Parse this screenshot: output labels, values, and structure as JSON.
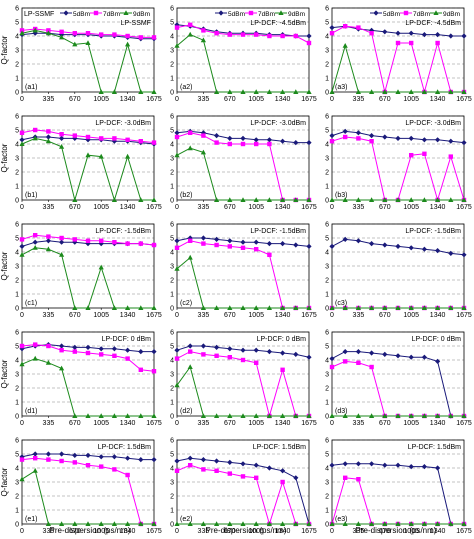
{
  "figure": {
    "ylabel": "Q-factor",
    "xlabel": "Pre-dispersion (ps/nm)"
  },
  "colors": {
    "p5": "#1a1a7a",
    "p7": "#ff00ff",
    "p9": "#1c8a1c",
    "grid": "#888888"
  },
  "legend": {
    "items": [
      {
        "label": "5dBm",
        "key": "p5"
      },
      {
        "label": "7dBm",
        "key": "p7"
      },
      {
        "label": "9dBm",
        "key": "p9"
      }
    ]
  },
  "chart_data": [
    {
      "type": "line",
      "id": "a1",
      "panel_label": "(a1)",
      "title": "LP-SSMF",
      "legend": true,
      "ylim": [
        0,
        6
      ],
      "x": [
        0,
        167.5,
        335,
        502.5,
        670,
        837.5,
        1005,
        1172.5,
        1340,
        1507.5,
        1675
      ],
      "series": [
        {
          "name": "5dBm",
          "key": "p5",
          "values": [
            4.1,
            4.2,
            4.2,
            4.1,
            4.1,
            4.1,
            4.0,
            4.0,
            3.9,
            3.8,
            3.8
          ]
        },
        {
          "name": "7dBm",
          "key": "p7",
          "values": [
            4.4,
            4.5,
            4.4,
            4.3,
            4.2,
            4.2,
            4.1,
            4.1,
            4.0,
            3.9,
            3.9
          ]
        },
        {
          "name": "9dBm",
          "key": "p9",
          "values": [
            4.2,
            4.4,
            4.2,
            3.9,
            3.4,
            3.5,
            0,
            0,
            3.4,
            0,
            0
          ]
        }
      ]
    },
    {
      "type": "line",
      "id": "a2",
      "panel_label": "(a2)",
      "title": "LP-DCF: -4.5dBm",
      "legend": true,
      "ylim": [
        0,
        6
      ],
      "x": [
        0,
        167.5,
        335,
        502.5,
        670,
        837.5,
        1005,
        1172.5,
        1340,
        1507.5,
        1675
      ],
      "series": [
        {
          "name": "5dBm",
          "key": "p5",
          "values": [
            4.8,
            4.7,
            4.5,
            4.3,
            4.2,
            4.2,
            4.2,
            4.1,
            4.1,
            4.0,
            4.0
          ]
        },
        {
          "name": "7dBm",
          "key": "p7",
          "values": [
            4.6,
            4.8,
            4.4,
            4.2,
            4.1,
            4.1,
            4.1,
            4.0,
            4.0,
            4.0,
            3.5
          ]
        },
        {
          "name": "9dBm",
          "key": "p9",
          "values": [
            3.3,
            4.1,
            3.7,
            0,
            0,
            0,
            0,
            0,
            0,
            0,
            0
          ]
        }
      ]
    },
    {
      "type": "line",
      "id": "a3",
      "panel_label": "(a3)",
      "title": "LP-DCF: -4.5dBm",
      "legend": true,
      "ylim": [
        0,
        6
      ],
      "x": [
        0,
        167.5,
        335,
        502.5,
        670,
        837.5,
        1005,
        1172.5,
        1340,
        1507.5,
        1675
      ],
      "series": [
        {
          "name": "5dBm",
          "key": "p5",
          "values": [
            4.6,
            4.7,
            4.5,
            4.4,
            4.3,
            4.2,
            4.2,
            4.1,
            4.1,
            4.0,
            4.0
          ]
        },
        {
          "name": "7dBm",
          "key": "p7",
          "values": [
            4.2,
            4.7,
            4.6,
            4.2,
            0,
            3.5,
            3.5,
            0,
            3.5,
            0,
            0
          ]
        },
        {
          "name": "9dBm",
          "key": "p9",
          "values": [
            0,
            3.3,
            0,
            0,
            0,
            0,
            0,
            0,
            0,
            0,
            0
          ]
        }
      ]
    },
    {
      "type": "line",
      "id": "b1",
      "panel_label": "(b1)",
      "title": "LP-DCF: -3.0dBm",
      "legend": false,
      "ylim": [
        0,
        6
      ],
      "x": [
        0,
        167.5,
        335,
        502.5,
        670,
        837.5,
        1005,
        1172.5,
        1340,
        1507.5,
        1675
      ],
      "series": [
        {
          "name": "5dBm",
          "key": "p5",
          "values": [
            4.3,
            4.5,
            4.5,
            4.4,
            4.4,
            4.3,
            4.3,
            4.2,
            4.2,
            4.1,
            4.0
          ]
        },
        {
          "name": "7dBm",
          "key": "p7",
          "values": [
            4.8,
            5.0,
            4.9,
            4.7,
            4.6,
            4.5,
            4.4,
            4.4,
            4.3,
            4.2,
            4.1
          ]
        },
        {
          "name": "9dBm",
          "key": "p9",
          "values": [
            4.0,
            4.4,
            4.2,
            3.8,
            0,
            3.2,
            3.1,
            0,
            3.1,
            0,
            0
          ]
        }
      ]
    },
    {
      "type": "line",
      "id": "b2",
      "panel_label": "(b2)",
      "title": "LP-DCF: -3.0dBm",
      "legend": false,
      "ylim": [
        0,
        6
      ],
      "x": [
        0,
        167.5,
        335,
        502.5,
        670,
        837.5,
        1005,
        1172.5,
        1340,
        1507.5,
        1675
      ],
      "series": [
        {
          "name": "5dBm",
          "key": "p5",
          "values": [
            4.8,
            4.9,
            4.8,
            4.6,
            4.4,
            4.4,
            4.3,
            4.3,
            4.2,
            4.1,
            4.1
          ]
        },
        {
          "name": "7dBm",
          "key": "p7",
          "values": [
            4.5,
            4.8,
            4.6,
            4.1,
            4.0,
            4.0,
            4.0,
            4.0,
            0,
            0,
            0
          ]
        },
        {
          "name": "9dBm",
          "key": "p9",
          "values": [
            3.2,
            3.7,
            3.4,
            0,
            0,
            0,
            0,
            0,
            0,
            0,
            0
          ]
        }
      ]
    },
    {
      "type": "line",
      "id": "b3",
      "panel_label": "(b3)",
      "title": "LP-DCF: -3.0dBm",
      "legend": false,
      "ylim": [
        0,
        6
      ],
      "x": [
        0,
        167.5,
        335,
        502.5,
        670,
        837.5,
        1005,
        1172.5,
        1340,
        1507.5,
        1675
      ],
      "series": [
        {
          "name": "5dBm",
          "key": "p5",
          "values": [
            4.6,
            4.9,
            4.8,
            4.6,
            4.5,
            4.4,
            4.4,
            4.3,
            4.3,
            4.2,
            4.1
          ]
        },
        {
          "name": "7dBm",
          "key": "p7",
          "values": [
            4.2,
            4.5,
            4.4,
            4.2,
            0,
            0,
            3.2,
            3.3,
            0,
            3.1,
            0
          ]
        },
        {
          "name": "9dBm",
          "key": "p9",
          "values": [
            0,
            0,
            0,
            0,
            0,
            0,
            0,
            0,
            0,
            0,
            0
          ]
        }
      ]
    },
    {
      "type": "line",
      "id": "c1",
      "panel_label": "(c1)",
      "title": "LP-DCF: -1.5dBm",
      "legend": false,
      "ylim": [
        0,
        6
      ],
      "x": [
        0,
        167.5,
        335,
        502.5,
        670,
        837.5,
        1005,
        1172.5,
        1340,
        1507.5,
        1675
      ],
      "series": [
        {
          "name": "5dBm",
          "key": "p5",
          "values": [
            4.4,
            4.7,
            4.8,
            4.7,
            4.7,
            4.6,
            4.6,
            4.6,
            4.6,
            4.6,
            4.5
          ]
        },
        {
          "name": "7dBm",
          "key": "p7",
          "values": [
            4.9,
            5.2,
            5.1,
            5.0,
            4.9,
            4.8,
            4.8,
            4.7,
            4.6,
            4.6,
            4.5
          ]
        },
        {
          "name": "9dBm",
          "key": "p9",
          "values": [
            3.8,
            4.3,
            4.2,
            3.8,
            0,
            0,
            2.9,
            0,
            0,
            0,
            0
          ]
        }
      ]
    },
    {
      "type": "line",
      "id": "c2",
      "panel_label": "(c2)",
      "title": "LP-DCF: -1.5dBm",
      "legend": false,
      "ylim": [
        0,
        6
      ],
      "x": [
        0,
        167.5,
        335,
        502.5,
        670,
        837.5,
        1005,
        1172.5,
        1340,
        1507.5,
        1675
      ],
      "series": [
        {
          "name": "5dBm",
          "key": "p5",
          "values": [
            4.8,
            5.0,
            5.0,
            4.9,
            4.8,
            4.7,
            4.7,
            4.6,
            4.6,
            4.5,
            4.4
          ]
        },
        {
          "name": "7dBm",
          "key": "p7",
          "values": [
            4.3,
            4.8,
            4.6,
            4.5,
            4.4,
            4.3,
            4.2,
            3.8,
            0,
            0,
            0
          ]
        },
        {
          "name": "9dBm",
          "key": "p9",
          "values": [
            2.8,
            3.6,
            0,
            0,
            0,
            0,
            0,
            0,
            0,
            0,
            0
          ]
        }
      ]
    },
    {
      "type": "line",
      "id": "c3",
      "panel_label": "(c3)",
      "title": "LP-DCF: -1.5dBm",
      "legend": false,
      "ylim": [
        0,
        6
      ],
      "x": [
        0,
        167.5,
        335,
        502.5,
        670,
        837.5,
        1005,
        1172.5,
        1340,
        1507.5,
        1675
      ],
      "series": [
        {
          "name": "5dBm",
          "key": "p5",
          "values": [
            4.4,
            4.9,
            4.8,
            4.6,
            4.5,
            4.4,
            4.3,
            4.2,
            4.1,
            3.9,
            3.8
          ]
        },
        {
          "name": "7dBm",
          "key": "p7",
          "values": [
            0,
            0,
            0,
            0,
            0,
            0,
            0,
            0,
            0,
            0,
            0
          ]
        },
        {
          "name": "9dBm",
          "key": "p9",
          "values": [
            0,
            0,
            0,
            0,
            0,
            0,
            0,
            0,
            0,
            0,
            0
          ]
        }
      ]
    },
    {
      "type": "line",
      "id": "d1",
      "panel_label": "(d1)",
      "title": "LP-DCF: 0 dBm",
      "legend": false,
      "ylim": [
        0,
        6
      ],
      "x": [
        0,
        167.5,
        335,
        502.5,
        670,
        837.5,
        1005,
        1172.5,
        1340,
        1507.5,
        1675
      ],
      "series": [
        {
          "name": "5dBm",
          "key": "p5",
          "values": [
            4.8,
            5.0,
            5.1,
            5.0,
            4.9,
            4.9,
            4.8,
            4.8,
            4.7,
            4.6,
            4.6
          ]
        },
        {
          "name": "7dBm",
          "key": "p7",
          "values": [
            5.0,
            5.1,
            5.0,
            4.7,
            4.6,
            4.5,
            4.4,
            4.3,
            4.1,
            3.3,
            3.2
          ]
        },
        {
          "name": "9dBm",
          "key": "p9",
          "values": [
            3.7,
            4.1,
            3.8,
            3.4,
            0,
            0,
            0,
            0,
            0,
            0,
            0
          ]
        }
      ]
    },
    {
      "type": "line",
      "id": "d2",
      "panel_label": "(d2)",
      "title": "LP-DCF: 0 dBm",
      "legend": false,
      "ylim": [
        0,
        6
      ],
      "x": [
        0,
        167.5,
        335,
        502.5,
        670,
        837.5,
        1005,
        1172.5,
        1340,
        1507.5,
        1675
      ],
      "series": [
        {
          "name": "5dBm",
          "key": "p5",
          "values": [
            4.7,
            5.0,
            5.0,
            4.9,
            4.8,
            4.7,
            4.7,
            4.6,
            4.5,
            4.4,
            4.2
          ]
        },
        {
          "name": "7dBm",
          "key": "p7",
          "values": [
            4.1,
            4.6,
            4.4,
            4.3,
            4.2,
            4.0,
            3.8,
            0,
            3.3,
            0,
            0
          ]
        },
        {
          "name": "9dBm",
          "key": "p9",
          "values": [
            2.2,
            3.5,
            0,
            0,
            0,
            0,
            0,
            0,
            0,
            0,
            0
          ]
        }
      ]
    },
    {
      "type": "line",
      "id": "d3",
      "panel_label": "(d3)",
      "title": "LP-DCF: 0 dBm",
      "legend": false,
      "ylim": [
        0,
        6
      ],
      "x": [
        0,
        167.5,
        335,
        502.5,
        670,
        837.5,
        1005,
        1172.5,
        1340,
        1507.5,
        1675
      ],
      "series": [
        {
          "name": "5dBm",
          "key": "p5",
          "values": [
            4.1,
            4.6,
            4.6,
            4.5,
            4.4,
            4.3,
            4.2,
            4.2,
            3.9,
            0,
            0
          ]
        },
        {
          "name": "7dBm",
          "key": "p7",
          "values": [
            3.5,
            3.9,
            3.8,
            3.5,
            0,
            0,
            0,
            0,
            0,
            0,
            0
          ]
        },
        {
          "name": "9dBm",
          "key": "p9",
          "values": [
            0,
            0,
            0,
            0,
            0,
            0,
            0,
            0,
            0,
            0,
            0
          ]
        }
      ]
    },
    {
      "type": "line",
      "id": "e1",
      "panel_label": "(e1)",
      "title": "LP-DCF: 1.5dBm",
      "legend": false,
      "ylim": [
        0,
        6
      ],
      "x": [
        0,
        167.5,
        335,
        502.5,
        670,
        837.5,
        1005,
        1172.5,
        1340,
        1507.5,
        1675
      ],
      "series": [
        {
          "name": "5dBm",
          "key": "p5",
          "values": [
            4.8,
            5.0,
            5.0,
            5.0,
            4.9,
            4.9,
            4.8,
            4.8,
            4.7,
            4.6,
            4.6
          ]
        },
        {
          "name": "7dBm",
          "key": "p7",
          "values": [
            4.6,
            4.7,
            4.6,
            4.5,
            4.4,
            4.2,
            4.1,
            3.9,
            3.5,
            0,
            0
          ]
        },
        {
          "name": "9dBm",
          "key": "p9",
          "values": [
            3.2,
            3.8,
            0,
            0,
            0,
            0,
            0,
            0,
            0,
            0,
            0
          ]
        }
      ]
    },
    {
      "type": "line",
      "id": "e2",
      "panel_label": "(e2)",
      "title": "LP-DCF: 1.5dBm",
      "legend": false,
      "ylim": [
        0,
        6
      ],
      "x": [
        0,
        167.5,
        335,
        502.5,
        670,
        837.5,
        1005,
        1172.5,
        1340,
        1507.5,
        1675
      ],
      "series": [
        {
          "name": "5dBm",
          "key": "p5",
          "values": [
            4.5,
            4.7,
            4.6,
            4.5,
            4.4,
            4.3,
            4.2,
            4.0,
            3.8,
            3.3,
            0
          ]
        },
        {
          "name": "7dBm",
          "key": "p7",
          "values": [
            3.8,
            4.2,
            3.9,
            3.8,
            3.6,
            3.4,
            3.3,
            0,
            3.0,
            0,
            0
          ]
        },
        {
          "name": "9dBm",
          "key": "p9",
          "values": [
            0,
            0,
            0,
            0,
            0,
            0,
            0,
            0,
            0,
            0,
            0
          ]
        }
      ]
    },
    {
      "type": "line",
      "id": "e3",
      "panel_label": "(e3)",
      "title": "LP-DCF: 1.5dBm",
      "legend": false,
      "ylim": [
        0,
        6
      ],
      "x": [
        0,
        167.5,
        335,
        502.5,
        670,
        837.5,
        1005,
        1172.5,
        1340,
        1507.5,
        1675
      ],
      "series": [
        {
          "name": "5dBm",
          "key": "p5",
          "values": [
            4.2,
            4.3,
            4.3,
            4.3,
            4.2,
            4.2,
            4.1,
            4.1,
            4.0,
            0,
            0
          ]
        },
        {
          "name": "7dBm",
          "key": "p7",
          "values": [
            0,
            3.3,
            3.2,
            0,
            0,
            0,
            0,
            0,
            0,
            0,
            0
          ]
        },
        {
          "name": "9dBm",
          "key": "p9",
          "values": [
            0,
            0,
            0,
            0,
            0,
            0,
            0,
            0,
            0,
            0,
            0
          ]
        }
      ]
    }
  ]
}
